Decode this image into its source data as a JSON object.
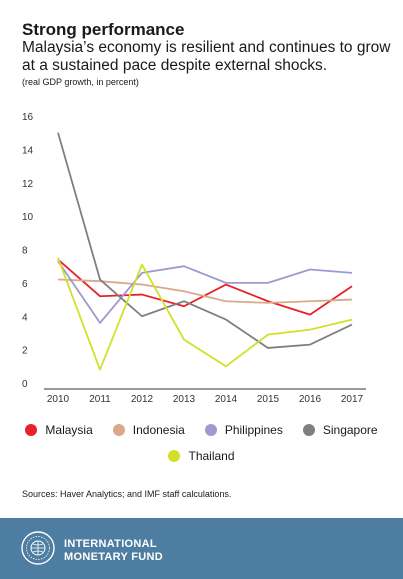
{
  "header": {
    "title": "Strong performance",
    "subtitle": "Malaysia’s economy is resilient and continues to grow at a sustained pace despite external shocks.",
    "note": "(real GDP growth, in percent)"
  },
  "chart_data": {
    "type": "line",
    "x": [
      "2010",
      "2011",
      "2012",
      "2013",
      "2014",
      "2015",
      "2016",
      "2017"
    ],
    "yticks": [
      0,
      2,
      4,
      6,
      8,
      10,
      12,
      14,
      16
    ],
    "ylim": [
      0,
      16
    ],
    "grid": false,
    "legend_position": "bottom",
    "series": [
      {
        "name": "Malaysia",
        "color": "#e8202a",
        "values": [
          7.4,
          5.2,
          5.3,
          4.6,
          5.9,
          4.9,
          4.1,
          5.8
        ]
      },
      {
        "name": "Indonesia",
        "color": "#d9a98a",
        "values": [
          6.2,
          6.1,
          5.9,
          5.5,
          4.9,
          4.8,
          4.9,
          5.0
        ]
      },
      {
        "name": "Philippines",
        "color": "#9e9ad0",
        "values": [
          7.3,
          3.6,
          6.6,
          7.0,
          6.0,
          6.0,
          6.8,
          6.6
        ]
      },
      {
        "name": "Singapore",
        "color": "#7f7f7f",
        "values": [
          15.0,
          6.2,
          4.0,
          4.9,
          3.8,
          2.1,
          2.3,
          3.5
        ]
      },
      {
        "name": "Thailand",
        "color": "#d2e02a",
        "values": [
          7.5,
          0.8,
          7.1,
          2.6,
          1.0,
          2.9,
          3.2,
          3.8
        ]
      }
    ]
  },
  "legend": {
    "row1": [
      "Malaysia",
      "Indonesia",
      "Philippines",
      "Singapore"
    ],
    "row2": [
      "Thailand"
    ]
  },
  "source": "Sources: Haver Analytics; and IMF staff calculations.",
  "footer": {
    "line1": "INTERNATIONAL",
    "line2": "MONETARY FUND",
    "seal_color": "#ffffff"
  }
}
